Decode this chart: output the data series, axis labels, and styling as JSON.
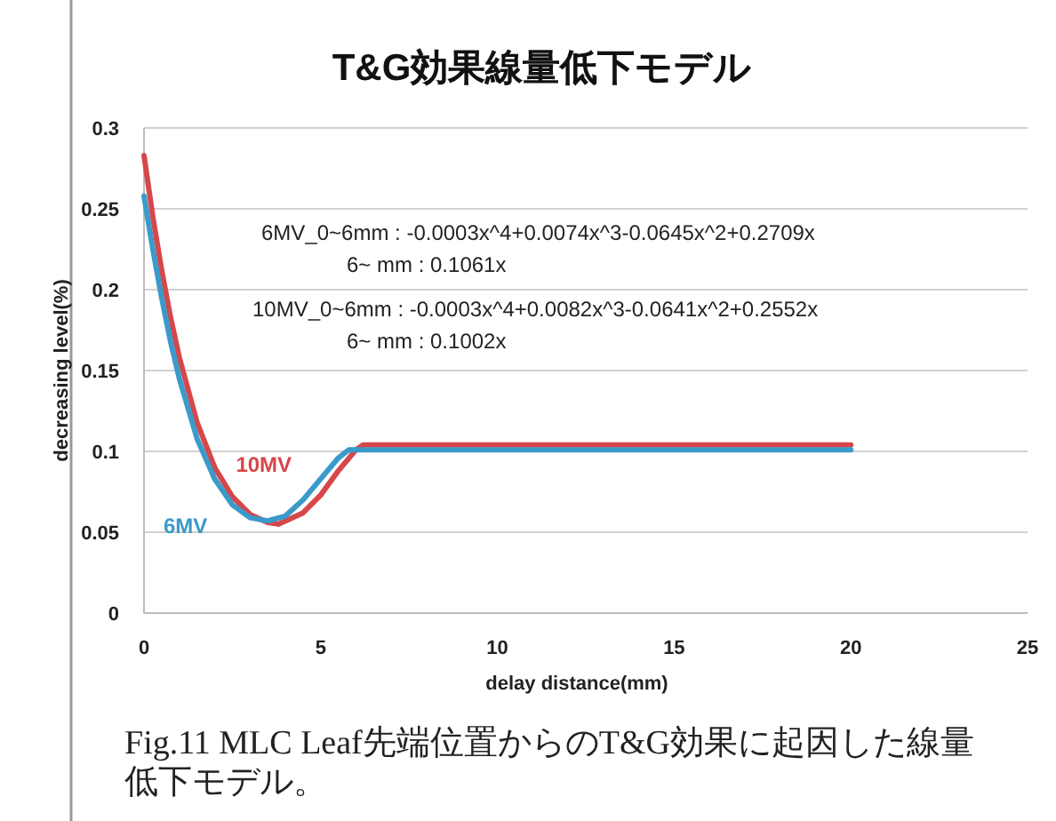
{
  "chart_data": {
    "type": "line",
    "title": "T&G効果線量低下モデル",
    "xlabel": "delay distance(mm)",
    "ylabel": "decreasing level(%)",
    "xlim": [
      0,
      25
    ],
    "xticks": [
      0,
      5,
      10,
      15,
      20,
      25
    ],
    "ylim": [
      0,
      0.3
    ],
    "yticks": [
      0,
      0.05,
      0.1,
      0.15,
      0.2,
      0.25,
      0.3
    ],
    "grid": "y",
    "marker": "none",
    "line_style": "solid",
    "series": [
      {
        "name": "10MV",
        "color": "#d6474a",
        "x": [
          0,
          0.25,
          0.5,
          0.75,
          1,
          1.5,
          2,
          2.5,
          3,
          3.5,
          3.8,
          4.5,
          5,
          5.5,
          6,
          6.2,
          20
        ],
        "values": [
          0.283,
          0.245,
          0.212,
          0.183,
          0.158,
          0.118,
          0.09,
          0.072,
          0.061,
          0.056,
          0.055,
          0.062,
          0.073,
          0.088,
          0.101,
          0.104,
          0.104
        ]
      },
      {
        "name": "6MV",
        "color": "#3a9ac9",
        "x": [
          0,
          0.25,
          0.5,
          0.75,
          1,
          1.5,
          2,
          2.5,
          3,
          3.5,
          4,
          4.5,
          5,
          5.5,
          5.8,
          6,
          20
        ],
        "values": [
          0.258,
          0.225,
          0.195,
          0.168,
          0.145,
          0.108,
          0.083,
          0.067,
          0.059,
          0.057,
          0.06,
          0.07,
          0.083,
          0.096,
          0.101,
          0.101,
          0.101
        ]
      }
    ],
    "annotations": [
      "6MV_0~6mm : -0.0003x^4+0.0074x^3-0.0645x^2+0.2709x",
      "6~  mm : 0.1061x",
      "10MV_0~6mm : -0.0003x^4+0.0082x^3-0.0641x^2+0.2552x",
      "6~  mm : 0.1002x",
      "Fig.11 MLC Leaf先端位置からのT&G効果に起因した線量低下モデル。"
    ]
  }
}
